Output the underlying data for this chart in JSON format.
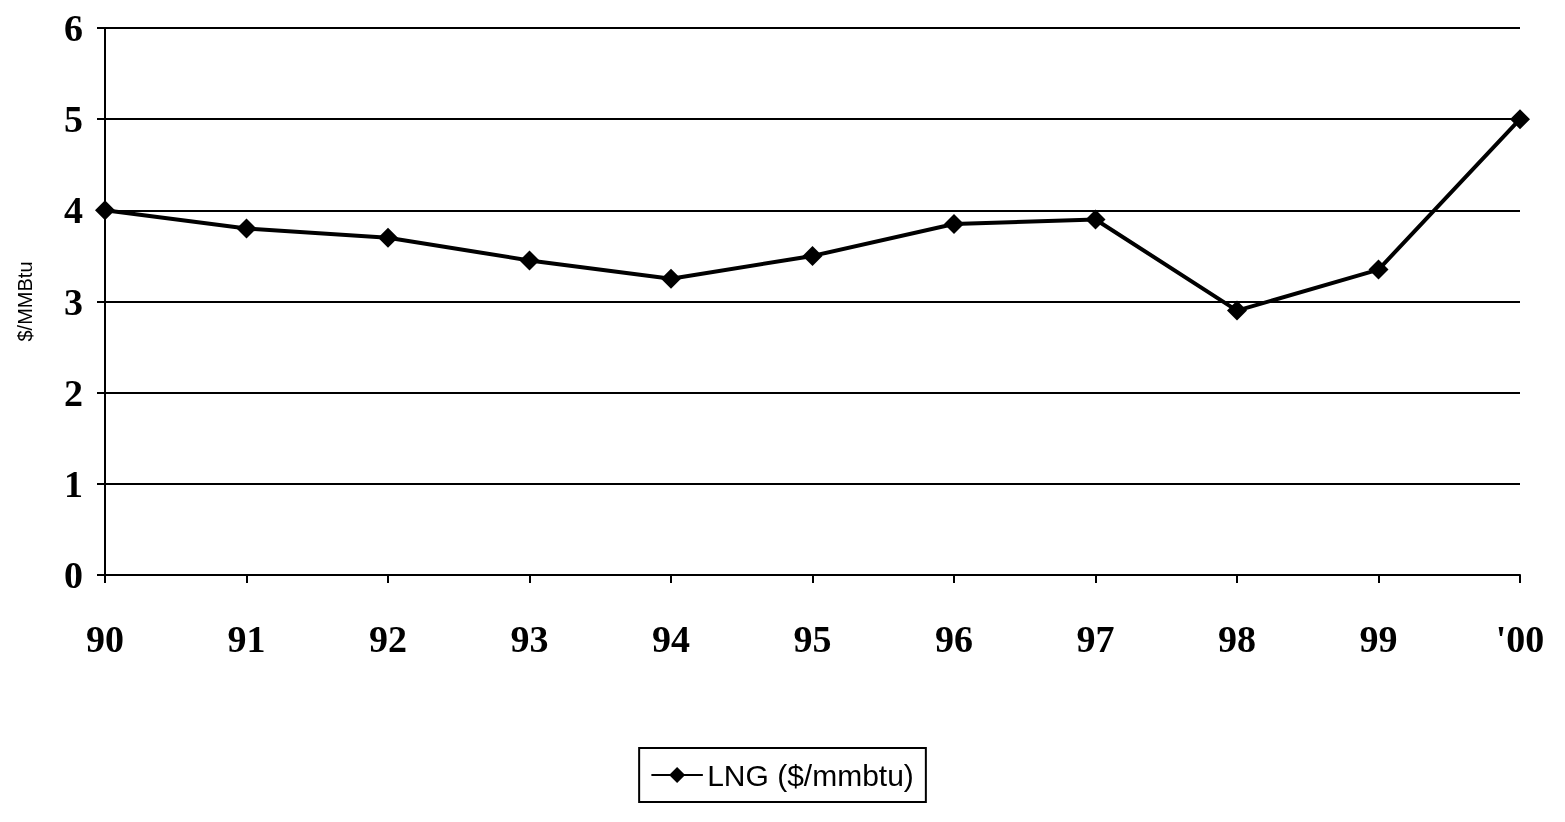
{
  "chart_data": {
    "type": "line",
    "ylabel": "$/MMBtu",
    "categories": [
      "90",
      "91",
      "92",
      "93",
      "94",
      "95",
      "96",
      "97",
      "98",
      "99",
      "'00"
    ],
    "series": [
      {
        "name": "LNG ($/mmbtu)",
        "color": "#000000",
        "values": [
          4.0,
          3.8,
          3.7,
          3.45,
          3.25,
          3.5,
          3.85,
          3.9,
          2.9,
          3.35,
          5.0
        ]
      }
    ],
    "ylim": [
      0,
      6
    ],
    "yticks": [
      0,
      1,
      2,
      3,
      4,
      5,
      6
    ],
    "grid": "y",
    "legend": "bottom",
    "marker": "diamond",
    "line_style": "solid"
  }
}
